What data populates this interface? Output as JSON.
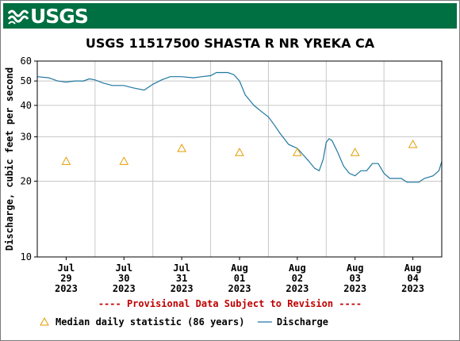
{
  "header": {
    "logo_text": "USGS"
  },
  "chart_data": {
    "type": "line",
    "title": "USGS 11517500 SHASTA R NR YREKA CA",
    "ylabel": "Discharge, cubic feet per second",
    "y_scale": "log",
    "ylim": [
      10,
      60
    ],
    "yticks": [
      10,
      20,
      30,
      40,
      50,
      60
    ],
    "xlim": [
      0,
      7
    ],
    "x_ticks": [
      {
        "pos": 0.5,
        "lines": [
          "Jul",
          "29",
          "2023"
        ]
      },
      {
        "pos": 1.5,
        "lines": [
          "Jul",
          "30",
          "2023"
        ]
      },
      {
        "pos": 2.5,
        "lines": [
          "Jul",
          "31",
          "2023"
        ]
      },
      {
        "pos": 3.5,
        "lines": [
          "Aug",
          "01",
          "2023"
        ]
      },
      {
        "pos": 4.5,
        "lines": [
          "Aug",
          "02",
          "2023"
        ]
      },
      {
        "pos": 5.5,
        "lines": [
          "Aug",
          "03",
          "2023"
        ]
      },
      {
        "pos": 6.5,
        "lines": [
          "Aug",
          "04",
          "2023"
        ]
      }
    ],
    "grid": true,
    "provisional_note": "---- Provisional Data Subject to Revision ----",
    "series": [
      {
        "name": "Discharge",
        "color": "#1f77a0",
        "points": [
          [
            0.0,
            52.0
          ],
          [
            0.2,
            51.5
          ],
          [
            0.35,
            50.0
          ],
          [
            0.5,
            49.5
          ],
          [
            0.65,
            50.0
          ],
          [
            0.8,
            50.0
          ],
          [
            0.9,
            51.0
          ],
          [
            1.0,
            50.5
          ],
          [
            1.15,
            49.0
          ],
          [
            1.3,
            48.0
          ],
          [
            1.5,
            48.0
          ],
          [
            1.65,
            47.0
          ],
          [
            1.85,
            46.0
          ],
          [
            2.0,
            48.5
          ],
          [
            2.15,
            50.5
          ],
          [
            2.3,
            52.0
          ],
          [
            2.5,
            52.0
          ],
          [
            2.7,
            51.5
          ],
          [
            2.85,
            52.0
          ],
          [
            3.0,
            52.5
          ],
          [
            3.1,
            54.0
          ],
          [
            3.3,
            54.0
          ],
          [
            3.4,
            53.0
          ],
          [
            3.5,
            50.0
          ],
          [
            3.6,
            44.0
          ],
          [
            3.75,
            40.0
          ],
          [
            3.9,
            37.5
          ],
          [
            4.0,
            36.0
          ],
          [
            4.1,
            33.5
          ],
          [
            4.2,
            31.0
          ],
          [
            4.35,
            28.0
          ],
          [
            4.5,
            27.0
          ],
          [
            4.6,
            25.5
          ],
          [
            4.7,
            24.0
          ],
          [
            4.8,
            22.5
          ],
          [
            4.88,
            22.0
          ],
          [
            4.95,
            24.5
          ],
          [
            5.0,
            28.5
          ],
          [
            5.05,
            29.5
          ],
          [
            5.1,
            29.0
          ],
          [
            5.2,
            26.0
          ],
          [
            5.3,
            23.0
          ],
          [
            5.4,
            21.5
          ],
          [
            5.5,
            21.0
          ],
          [
            5.6,
            22.0
          ],
          [
            5.7,
            22.0
          ],
          [
            5.8,
            23.5
          ],
          [
            5.9,
            23.5
          ],
          [
            6.0,
            21.5
          ],
          [
            6.1,
            20.5
          ],
          [
            6.3,
            20.5
          ],
          [
            6.4,
            19.8
          ],
          [
            6.6,
            19.8
          ],
          [
            6.7,
            20.5
          ],
          [
            6.85,
            21.0
          ],
          [
            6.95,
            22.0
          ],
          [
            7.05,
            26.0
          ],
          [
            7.15,
            31.0
          ],
          [
            7.25,
            29.0
          ],
          [
            7.35,
            27.0
          ],
          [
            7.45,
            25.5
          ],
          [
            7.52,
            24.5
          ]
        ]
      },
      {
        "name": "Median daily statistic (86 years)",
        "color": "#e69b00",
        "marker": "triangle",
        "points": [
          [
            0.5,
            24.0
          ],
          [
            1.5,
            24.0
          ],
          [
            2.5,
            27.0
          ],
          [
            3.5,
            26.0
          ],
          [
            4.5,
            26.0
          ],
          [
            5.5,
            26.0
          ],
          [
            6.5,
            28.0
          ]
        ]
      }
    ],
    "legend": [
      {
        "label": "Median daily statistic (86 years)",
        "marker": "triangle",
        "color": "#e69b00"
      },
      {
        "label": "Discharge",
        "marker": "line",
        "color": "#1f77a0"
      }
    ]
  }
}
